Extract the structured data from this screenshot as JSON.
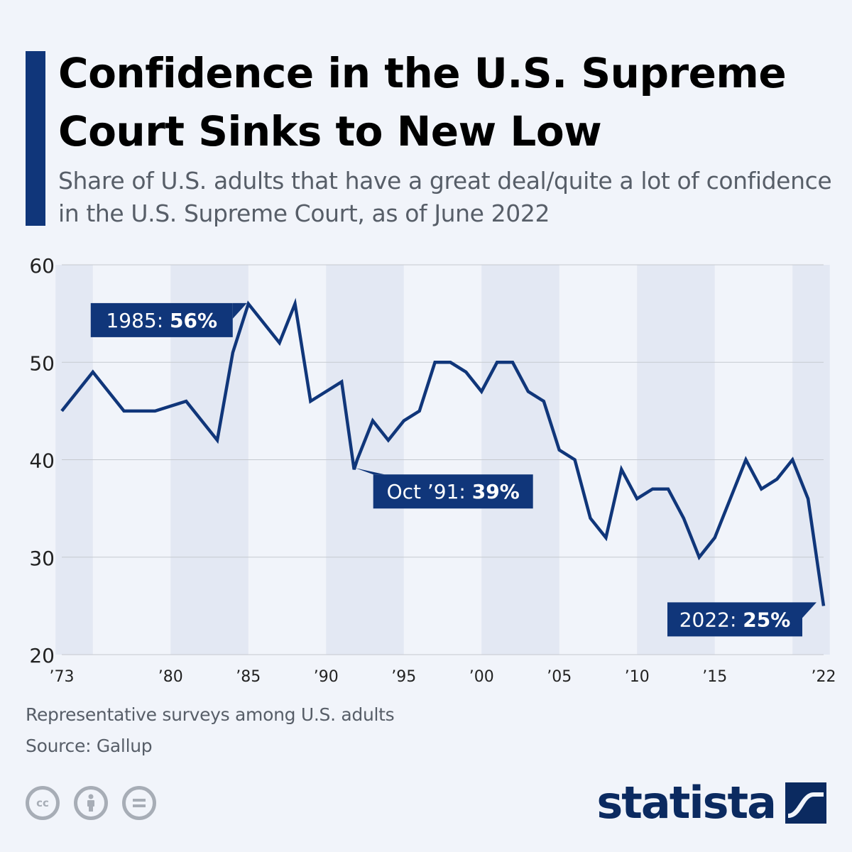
{
  "header": {
    "title": "Confidence in the U.S. Supreme Court Sinks to New Low",
    "subtitle": "Share of U.S. adults that have a great deal/quite a lot of confidence in the U.S. Supreme Court, as of June 2022"
  },
  "footer": {
    "note": "Representative surveys among U.S. adults",
    "source": "Source: Gallup",
    "brand": "statista",
    "license_icons": [
      "cc-icon",
      "attribution-icon",
      "no-derivatives-icon"
    ]
  },
  "colors": {
    "line": "#10367a",
    "band": "#e3e8f3",
    "grid": "#c5c9cf",
    "background": "#f1f4fa"
  },
  "chart_data": {
    "type": "line",
    "title": "",
    "xlabel": "",
    "ylabel": "",
    "ylim": [
      20,
      60
    ],
    "xlim": [
      1973,
      2022
    ],
    "yticks": [
      20,
      30,
      40,
      50,
      60
    ],
    "xticks": [
      {
        "value": 1973,
        "label": "’73"
      },
      {
        "value": 1980,
        "label": "’80"
      },
      {
        "value": 1985,
        "label": "’85"
      },
      {
        "value": 1990,
        "label": "’90"
      },
      {
        "value": 1995,
        "label": "’95"
      },
      {
        "value": 2000,
        "label": "’00"
      },
      {
        "value": 2005,
        "label": "’05"
      },
      {
        "value": 2010,
        "label": "’10"
      },
      {
        "value": 2015,
        "label": "’15"
      },
      {
        "value": 2022,
        "label": "’22"
      }
    ],
    "grid": true,
    "series": [
      {
        "points": [
          [
            1973,
            45
          ],
          [
            1975,
            49
          ],
          [
            1977,
            45
          ],
          [
            1979,
            45
          ],
          [
            1981,
            46
          ],
          [
            1983,
            42
          ],
          [
            1984,
            51
          ],
          [
            1985,
            56
          ],
          [
            1987,
            52
          ],
          [
            1988,
            56
          ],
          [
            1989,
            46
          ],
          [
            1991,
            48
          ],
          [
            1991.8,
            39
          ],
          [
            1992,
            40
          ],
          [
            1993,
            44
          ],
          [
            1994,
            42
          ],
          [
            1995,
            44
          ],
          [
            1996,
            45
          ],
          [
            1997,
            50
          ],
          [
            1998,
            50
          ],
          [
            1999,
            49
          ],
          [
            2000,
            47
          ],
          [
            2001,
            50
          ],
          [
            2002,
            50
          ],
          [
            2003,
            47
          ],
          [
            2004,
            46
          ],
          [
            2005,
            41
          ],
          [
            2006,
            40
          ],
          [
            2007,
            34
          ],
          [
            2008,
            32
          ],
          [
            2009,
            39
          ],
          [
            2010,
            36
          ],
          [
            2011,
            37
          ],
          [
            2012,
            37
          ],
          [
            2013,
            34
          ],
          [
            2014,
            30
          ],
          [
            2015,
            32
          ],
          [
            2016,
            36
          ],
          [
            2017,
            40
          ],
          [
            2018,
            37
          ],
          [
            2019,
            38
          ],
          [
            2020,
            40
          ],
          [
            2021,
            36
          ],
          [
            2022,
            25
          ]
        ]
      }
    ],
    "annotations": [
      {
        "x": 1985,
        "y": 56,
        "label": "1985:",
        "value": "56%"
      },
      {
        "x": 1991.8,
        "y": 39,
        "label": "Oct ’91:",
        "value": "39%"
      },
      {
        "x": 2022,
        "y": 25,
        "label": "2022:",
        "value": "25%"
      }
    ]
  }
}
